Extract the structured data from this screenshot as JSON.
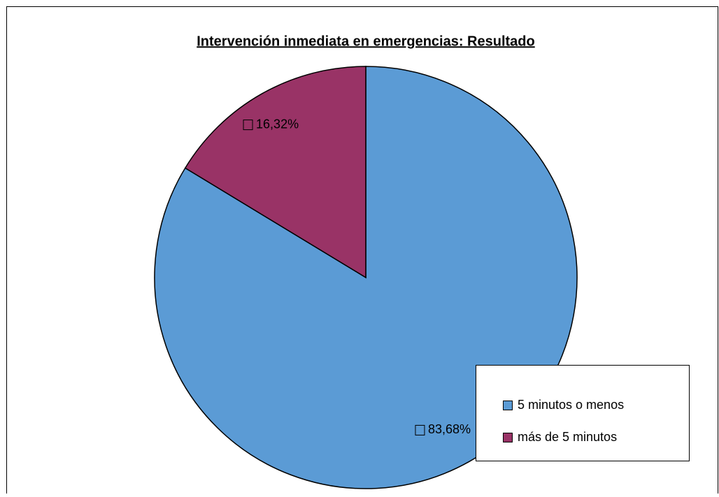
{
  "chart_data": {
    "type": "pie",
    "title": "Intervención inmediata en emergencias: Resultado",
    "categories": [
      "5 minutos o menos",
      "más de 5 minutos"
    ],
    "values": [
      83.68,
      16.32
    ],
    "value_labels": [
      "83,68%",
      "16,32%"
    ],
    "colors": [
      "#5b9bd5",
      "#993366"
    ],
    "legend": "lower right"
  }
}
